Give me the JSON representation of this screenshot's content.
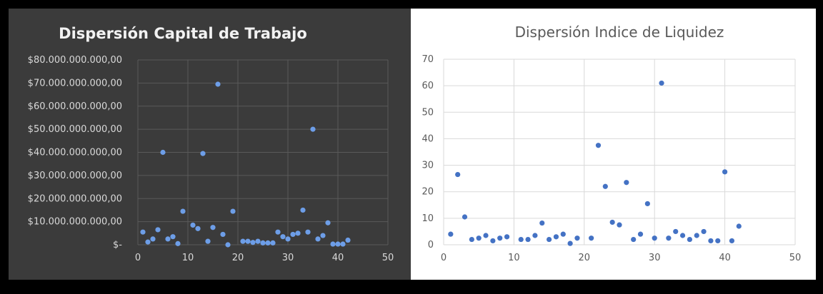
{
  "colors": {
    "left_background": "#3b3b3b",
    "left_gridline": "#5a5a5a",
    "left_point": "#6d9ee8",
    "right_background": "#ffffff",
    "right_gridline": "#d9d9d9",
    "right_point": "#4472c4"
  },
  "chart_data": [
    {
      "type": "scatter",
      "title": "Dispersión Capital de Trabajo",
      "xlabel": "",
      "ylabel": "",
      "xlim": [
        0,
        50
      ],
      "ylim": [
        0,
        80000000000
      ],
      "grid": true,
      "x_ticks": [
        "0",
        "10",
        "20",
        "30",
        "40",
        "50"
      ],
      "y_ticks": [
        "$-",
        "$10.000.000.000,00",
        "$20.000.000.000,00",
        "$30.000.000.000,00",
        "$40.000.000.000,00",
        "$50.000.000.000,00",
        "$60.000.000.000,00",
        "$70.000.000.000,00",
        "$80.000.000.000,00"
      ],
      "points": [
        [
          1,
          5500000000
        ],
        [
          2,
          1200000000
        ],
        [
          3,
          2500000000
        ],
        [
          4,
          6500000000
        ],
        [
          5,
          40000000000
        ],
        [
          6,
          2500000000
        ],
        [
          7,
          3500000000
        ],
        [
          8,
          500000000
        ],
        [
          9,
          14500000000
        ],
        [
          11,
          8500000000
        ],
        [
          12,
          7000000000
        ],
        [
          13,
          39500000000
        ],
        [
          14,
          1500000000
        ],
        [
          15,
          7500000000
        ],
        [
          16,
          69500000000
        ],
        [
          17,
          4500000000
        ],
        [
          18,
          0
        ],
        [
          19,
          14500000000
        ],
        [
          21,
          1500000000
        ],
        [
          22,
          1500000000
        ],
        [
          23,
          1000000000
        ],
        [
          24,
          1500000000
        ],
        [
          25,
          800000000
        ],
        [
          26,
          800000000
        ],
        [
          27,
          800000000
        ],
        [
          28,
          5500000000
        ],
        [
          29,
          3500000000
        ],
        [
          30,
          2500000000
        ],
        [
          31,
          4500000000
        ],
        [
          32,
          5000000000
        ],
        [
          33,
          15000000000
        ],
        [
          34,
          5500000000
        ],
        [
          35,
          50000000000
        ],
        [
          36,
          2500000000
        ],
        [
          37,
          4000000000
        ],
        [
          38,
          9500000000
        ],
        [
          39,
          300000000
        ],
        [
          40,
          300000000
        ],
        [
          41,
          300000000
        ],
        [
          42,
          2000000000
        ]
      ]
    },
    {
      "type": "scatter",
      "title": "Dispersión Indice de Liquidez",
      "xlabel": "",
      "ylabel": "",
      "xlim": [
        0,
        50
      ],
      "ylim": [
        0,
        70
      ],
      "grid": true,
      "x_ticks": [
        "0",
        "10",
        "20",
        "30",
        "40",
        "50"
      ],
      "y_ticks": [
        "0",
        "10",
        "20",
        "30",
        "40",
        "50",
        "60",
        "70"
      ],
      "points": [
        [
          1,
          4
        ],
        [
          2,
          26.5
        ],
        [
          3,
          10.5
        ],
        [
          4,
          2
        ],
        [
          5,
          2.5
        ],
        [
          6,
          3.5
        ],
        [
          7,
          1.5
        ],
        [
          8,
          2.5
        ],
        [
          9,
          3
        ],
        [
          11,
          2
        ],
        [
          12,
          2
        ],
        [
          13,
          3.5
        ],
        [
          14,
          8.2
        ],
        [
          15,
          2
        ],
        [
          16,
          3
        ],
        [
          17,
          4
        ],
        [
          18,
          0.5
        ],
        [
          19,
          2.5
        ],
        [
          21,
          2.5
        ],
        [
          22,
          37.5
        ],
        [
          23,
          22
        ],
        [
          24,
          8.5
        ],
        [
          25,
          7.5
        ],
        [
          26,
          23.5
        ],
        [
          27,
          2
        ],
        [
          28,
          4
        ],
        [
          29,
          15.5
        ],
        [
          30,
          2.5
        ],
        [
          31,
          61
        ],
        [
          32,
          2.5
        ],
        [
          33,
          5
        ],
        [
          34,
          3.5
        ],
        [
          35,
          2
        ],
        [
          36,
          3.5
        ],
        [
          37,
          5
        ],
        [
          38,
          1.5
        ],
        [
          39,
          1.5
        ],
        [
          40,
          27.5
        ],
        [
          41,
          1.5
        ],
        [
          42,
          7
        ]
      ]
    }
  ]
}
